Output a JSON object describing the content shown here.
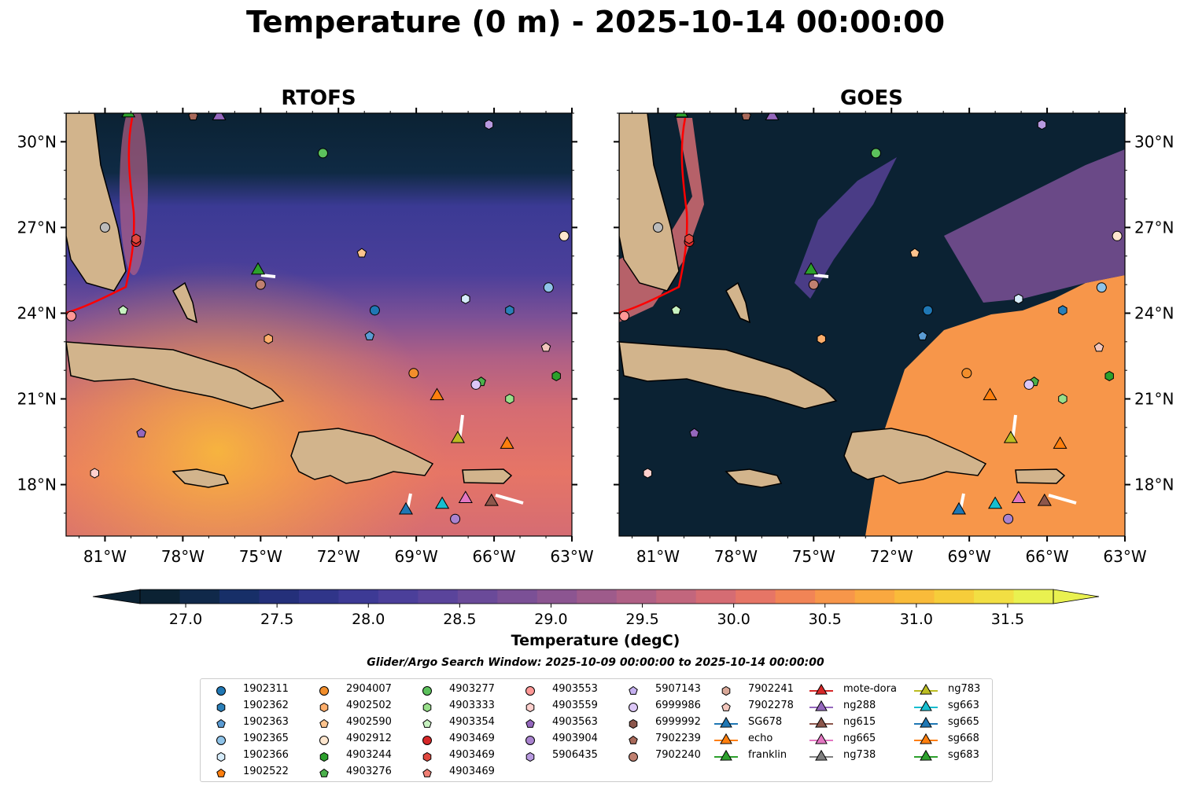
{
  "title": "Temperature (0 m) - 2025-10-14 00:00:00",
  "panels": [
    {
      "title": "RTOFS"
    },
    {
      "title": "GOES"
    }
  ],
  "axes": {
    "lon_ticks": [
      "81°W",
      "78°W",
      "75°W",
      "72°W",
      "69°W",
      "66°W",
      "63°W"
    ],
    "lat_ticks": [
      "30°N",
      "27°N",
      "24°N",
      "21°N",
      "18°N"
    ],
    "lon_values": [
      -81,
      -78,
      -75,
      -72,
      -69,
      -66,
      -63
    ],
    "lat_values": [
      30,
      27,
      24,
      21,
      18
    ],
    "lon_range": [
      -82.5,
      -63
    ],
    "lat_range": [
      16.2,
      31
    ]
  },
  "colorbar": {
    "label": "Temperature (degC)",
    "ticks": [
      "27.0",
      "27.5",
      "28.0",
      "28.5",
      "29.0",
      "29.5",
      "30.0",
      "30.5",
      "31.0",
      "31.5"
    ],
    "tick_values": [
      27.0,
      27.5,
      28.0,
      28.5,
      29.0,
      29.5,
      30.0,
      30.5,
      31.0,
      31.5
    ],
    "range": [
      26.75,
      31.75
    ],
    "extend": "both",
    "colors": [
      "#0b2233",
      "#10294a",
      "#172f68",
      "#24307a",
      "#303589",
      "#3d3a95",
      "#4b3f9a",
      "#5a449b",
      "#6a4a99",
      "#7b5096",
      "#8c5591",
      "#9e5b8b",
      "#b06085",
      "#c2667d",
      "#d56c73",
      "#e67566",
      "#f18456",
      "#f7964a",
      "#f9a840",
      "#f9bb3a",
      "#f6cd3a",
      "#f2df43",
      "#e9f150"
    ]
  },
  "search_window": "Glider/Argo Search Window: 2025-10-09 00:00:00 to 2025-10-14 00:00:00",
  "legend": {
    "columns": [
      [
        {
          "label": "1902311",
          "color": "#1f77b4",
          "marker": "circle"
        },
        {
          "label": "1902362",
          "color": "#2a7fb8",
          "marker": "hexagon"
        },
        {
          "label": "1902363",
          "color": "#5a9bd3",
          "marker": "pentagon"
        },
        {
          "label": "1902365",
          "color": "#8fc3e8",
          "marker": "circle"
        },
        {
          "label": "1902366",
          "color": "#d6ecfa",
          "marker": "hexagon"
        },
        {
          "label": "1902522",
          "color": "#ff7f0e",
          "marker": "pentagon"
        }
      ],
      [
        {
          "label": "2904007",
          "color": "#f28e2b",
          "marker": "circle"
        },
        {
          "label": "4902502",
          "color": "#fdae6b",
          "marker": "hexagon"
        },
        {
          "label": "4902590",
          "color": "#fdc38d",
          "marker": "pentagon"
        },
        {
          "label": "4902912",
          "color": "#fee6ce",
          "marker": "circle"
        },
        {
          "label": "4903244",
          "color": "#2ca02c",
          "marker": "hexagon"
        },
        {
          "label": "4903276",
          "color": "#4bb04b",
          "marker": "pentagon"
        }
      ],
      [
        {
          "label": "4903277",
          "color": "#5cc15c",
          "marker": "circle"
        },
        {
          "label": "4903333",
          "color": "#98df8a",
          "marker": "hexagon"
        },
        {
          "label": "4903354",
          "color": "#c7f2c0",
          "marker": "pentagon"
        },
        {
          "label": "4903469",
          "color": "#d62728",
          "marker": "circle"
        },
        {
          "label": "4903469",
          "color": "#e0483f",
          "marker": "hexagon"
        },
        {
          "label": "4903469",
          "color": "#f07f74",
          "marker": "pentagon"
        }
      ],
      [
        {
          "label": "4903553",
          "color": "#ff9896",
          "marker": "circle"
        },
        {
          "label": "4903559",
          "color": "#ffd0cd",
          "marker": "hexagon"
        },
        {
          "label": "4903563",
          "color": "#9467bd",
          "marker": "pentagon"
        },
        {
          "label": "4903904",
          "color": "#a983cf",
          "marker": "circle"
        },
        {
          "label": "5906435",
          "color": "#b89ae0",
          "marker": "hexagon"
        }
      ],
      [
        {
          "label": "5907143",
          "color": "#c5b0f0",
          "marker": "pentagon"
        },
        {
          "label": "6999986",
          "color": "#dcc7f7",
          "marker": "circle"
        },
        {
          "label": "6999992",
          "color": "#8c564b",
          "marker": "hexagon"
        },
        {
          "label": "7902239",
          "color": "#a8695a",
          "marker": "pentagon"
        },
        {
          "label": "7902240",
          "color": "#c08070",
          "marker": "circle"
        }
      ],
      [
        {
          "label": "7902241",
          "color": "#d9a898",
          "marker": "hexagon"
        },
        {
          "label": "7902278",
          "color": "#f2c6bc",
          "marker": "pentagon"
        },
        {
          "label": "SG678",
          "color": "#1f77b4",
          "marker": "triangle"
        },
        {
          "label": "echo",
          "color": "#ff7f0e",
          "marker": "triangle"
        },
        {
          "label": "franklin",
          "color": "#2ca02c",
          "marker": "triangle"
        }
      ],
      [
        {
          "label": "mote-dora",
          "color": "#d62728",
          "marker": "triangle"
        },
        {
          "label": "ng288",
          "color": "#9467bd",
          "marker": "triangle"
        },
        {
          "label": "ng615",
          "color": "#8c564b",
          "marker": "triangle"
        },
        {
          "label": "ng665",
          "color": "#e377c2",
          "marker": "triangle"
        },
        {
          "label": "ng738",
          "color": "#7f7f7f",
          "marker": "triangle"
        }
      ],
      [
        {
          "label": "ng783",
          "color": "#bcbd22",
          "marker": "triangle"
        },
        {
          "label": "sg663",
          "color": "#17becf",
          "marker": "triangle"
        },
        {
          "label": "sg665",
          "color": "#1f77b4",
          "marker": "triangle"
        },
        {
          "label": "sg668",
          "color": "#ff7f0e",
          "marker": "triangle"
        },
        {
          "label": "sg683",
          "color": "#2ca02c",
          "marker": "triangle"
        }
      ]
    ]
  },
  "markers": [
    {
      "lon": -70.6,
      "lat": 24.1,
      "color": "#1f77b4",
      "marker": "circle"
    },
    {
      "lon": -65.4,
      "lat": 24.1,
      "color": "#2a7fb8",
      "marker": "hexagon"
    },
    {
      "lon": -70.8,
      "lat": 23.2,
      "color": "#5a9bd3",
      "marker": "pentagon"
    },
    {
      "lon": -63.9,
      "lat": 24.9,
      "color": "#8fc3e8",
      "marker": "circle"
    },
    {
      "lon": -67.1,
      "lat": 24.5,
      "color": "#d6ecfa",
      "marker": "hexagon"
    },
    {
      "lon": -69.1,
      "lat": 21.9,
      "color": "#f28e2b",
      "marker": "circle"
    },
    {
      "lon": -74.7,
      "lat": 23.1,
      "color": "#fdae6b",
      "marker": "hexagon"
    },
    {
      "lon": -71.1,
      "lat": 26.1,
      "color": "#fdc38d",
      "marker": "pentagon"
    },
    {
      "lon": -63.3,
      "lat": 26.7,
      "color": "#fee6ce",
      "marker": "circle"
    },
    {
      "lon": -63.6,
      "lat": 21.8,
      "color": "#2ca02c",
      "marker": "hexagon"
    },
    {
      "lon": -66.5,
      "lat": 21.6,
      "color": "#4bb04b",
      "marker": "pentagon"
    },
    {
      "lon": -72.6,
      "lat": 29.6,
      "color": "#5cc15c",
      "marker": "circle"
    },
    {
      "lon": -65.4,
      "lat": 21.0,
      "color": "#98df8a",
      "marker": "hexagon"
    },
    {
      "lon": -80.3,
      "lat": 24.1,
      "color": "#c7f2c0",
      "marker": "pentagon"
    },
    {
      "lon": -79.8,
      "lat": 26.5,
      "color": "#d62728",
      "marker": "circle"
    },
    {
      "lon": -79.8,
      "lat": 26.6,
      "color": "#e0483f",
      "marker": "hexagon"
    },
    {
      "lon": -82.3,
      "lat": 23.9,
      "color": "#ff9896",
      "marker": "circle"
    },
    {
      "lon": -81.4,
      "lat": 18.4,
      "color": "#ffd0cd",
      "marker": "hexagon"
    },
    {
      "lon": -79.6,
      "lat": 19.8,
      "color": "#9467bd",
      "marker": "pentagon"
    },
    {
      "lon": -67.5,
      "lat": 16.8,
      "color": "#a983cf",
      "marker": "circle"
    },
    {
      "lon": -66.2,
      "lat": 30.6,
      "color": "#b89ae0",
      "marker": "hexagon"
    },
    {
      "lon": -66.7,
      "lat": 21.5,
      "color": "#dcc7f7",
      "marker": "circle"
    },
    {
      "lon": -77.6,
      "lat": 30.9,
      "color": "#a8695a",
      "marker": "pentagon"
    },
    {
      "lon": -75.0,
      "lat": 25.0,
      "color": "#c08070",
      "marker": "circle"
    },
    {
      "lon": -64.0,
      "lat": 22.8,
      "color": "#f2c6bc",
      "marker": "pentagon"
    },
    {
      "lon": -81.0,
      "lat": 27.0,
      "color": "#bbbbbb",
      "marker": "circle"
    },
    {
      "lon": -69.4,
      "lat": 17.1,
      "color": "#1f77b4",
      "marker": "triangle"
    },
    {
      "lon": -68.2,
      "lat": 21.1,
      "color": "#ff7f0e",
      "marker": "triangle"
    },
    {
      "lon": -75.1,
      "lat": 25.5,
      "color": "#2ca02c",
      "marker": "triangle"
    },
    {
      "lon": -80.1,
      "lat": 31.0,
      "color": "#2ca02c",
      "marker": "triangle"
    },
    {
      "lon": -76.6,
      "lat": 30.9,
      "color": "#9467bd",
      "marker": "triangle"
    },
    {
      "lon": -66.1,
      "lat": 17.4,
      "color": "#8c564b",
      "marker": "triangle"
    },
    {
      "lon": -67.1,
      "lat": 17.5,
      "color": "#e377c2",
      "marker": "triangle"
    },
    {
      "lon": -67.4,
      "lat": 19.6,
      "color": "#bcbd22",
      "marker": "triangle"
    },
    {
      "lon": -68.0,
      "lat": 17.3,
      "color": "#17becf",
      "marker": "triangle"
    },
    {
      "lon": -65.5,
      "lat": 19.4,
      "color": "#ff7f0e",
      "marker": "triangle"
    }
  ]
}
